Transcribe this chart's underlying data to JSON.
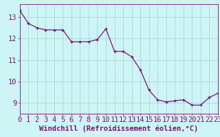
{
  "x": [
    0,
    1,
    2,
    3,
    4,
    5,
    6,
    7,
    8,
    9,
    10,
    11,
    12,
    13,
    14,
    15,
    16,
    17,
    18,
    19,
    20,
    21,
    22,
    23
  ],
  "y": [
    13.3,
    12.7,
    12.5,
    12.4,
    12.4,
    12.4,
    11.85,
    11.85,
    11.85,
    11.95,
    12.45,
    11.4,
    11.4,
    11.15,
    10.55,
    9.6,
    9.15,
    9.05,
    9.1,
    9.15,
    8.9,
    8.9,
    9.25,
    9.45
  ],
  "line_color": "#7b0e7b",
  "marker": "+",
  "marker_color": "#7b0e7b",
  "bg_color": "#cef5f5",
  "grid_color": "#a8d8d8",
  "axis_color": "#7b0e7b",
  "xlabel": "Windchill (Refroidissement éolien,°C)",
  "ylim": [
    8.5,
    13.6
  ],
  "xlim": [
    0,
    23
  ],
  "yticks": [
    9,
    10,
    11,
    12,
    13
  ],
  "xticks": [
    0,
    1,
    2,
    3,
    4,
    5,
    6,
    7,
    8,
    9,
    10,
    11,
    12,
    13,
    14,
    15,
    16,
    17,
    18,
    19,
    20,
    21,
    22,
    23
  ],
  "font_size_xlabel": 7.5,
  "font_size_ticks": 7.5
}
